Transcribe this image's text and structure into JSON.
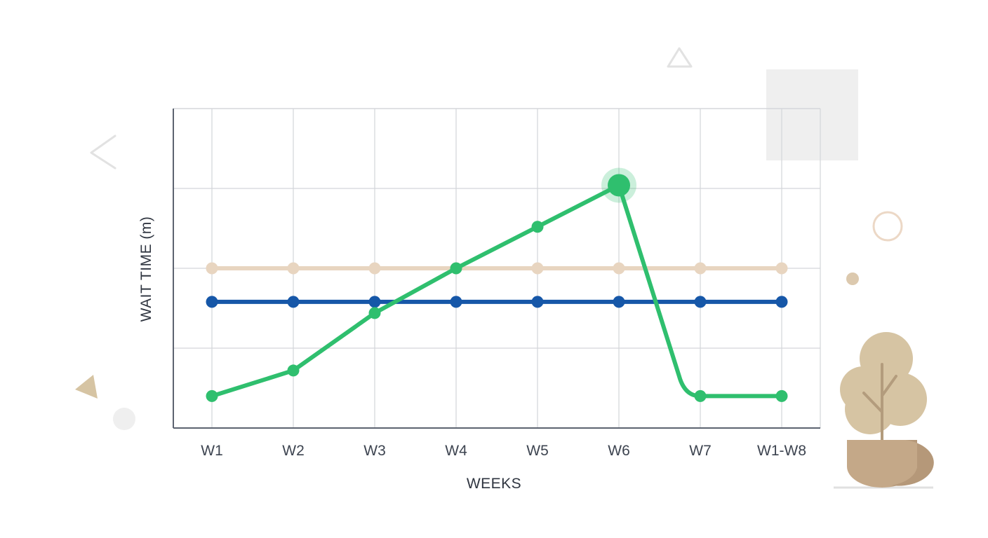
{
  "chart_data": {
    "type": "line",
    "title": "",
    "xlabel": "WEEKS",
    "ylabel": "WAIT TIME (m)",
    "categories": [
      "W1",
      "W2",
      "W3",
      "W4",
      "W5",
      "W6",
      "W7",
      "W1-W8"
    ],
    "ylim": [
      0,
      4
    ],
    "grid": true,
    "series": [
      {
        "color": "#e8d5c0",
        "values": [
          2.0,
          2.0,
          2.0,
          2.0,
          2.0,
          2.0,
          2.0,
          2.0
        ]
      },
      {
        "color": "#1657a8",
        "values": [
          1.58,
          1.58,
          1.58,
          1.58,
          1.58,
          1.58,
          1.58,
          1.58
        ]
      },
      {
        "color": "#2fbf6e",
        "values": [
          0.4,
          0.72,
          1.44,
          2.0,
          2.52,
          3.04,
          0.4,
          0.4
        ],
        "highlight_index": 5
      }
    ]
  },
  "decor": {
    "colors": {
      "tan": "#d6c4a3",
      "pot": "#c4a888",
      "light_gray": "#efefef",
      "outline": "#e2e2e2",
      "ring": "#ecd8c6"
    },
    "icons": [
      "triangle-outline-icon",
      "chevron-left-icon",
      "filled-triangle-icon",
      "ring-icon",
      "dot-icon",
      "potted-tree-icon"
    ]
  }
}
